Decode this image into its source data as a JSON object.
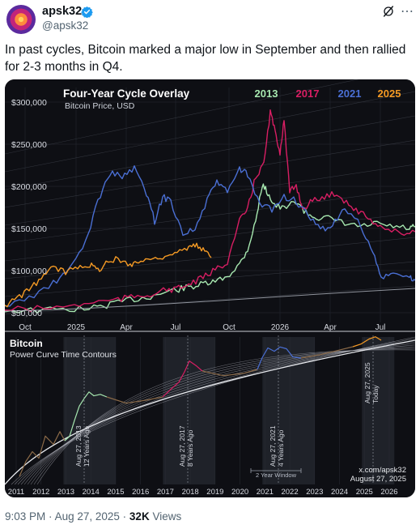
{
  "post": {
    "author_name": "apsk32",
    "author_handle": "@apsk32",
    "text": "In past cycles, Bitcoin marked a major low in September and then rallied for 2-3 months in Q4.",
    "time": "9:03 PM",
    "date": "Aug 27, 2025",
    "separator": "·",
    "views_count": "32K",
    "views_label": "Views",
    "icons": [
      "verified-badge-icon",
      "grok-icon",
      "more-options-icon"
    ]
  },
  "chart_data": [
    {
      "type": "line",
      "title": "Four-Year Cycle Overlay",
      "subtitle": "Bitcoin Price, USD",
      "legend_position": "top-right",
      "series": [
        {
          "name": "2013",
          "color": "#a7e8b0"
        },
        {
          "name": "2017",
          "color": "#d81e63"
        },
        {
          "name": "2021",
          "color": "#4a6fd4"
        },
        {
          "name": "2025",
          "color": "#f59a24"
        }
      ],
      "y_ticks": [
        "$300,000",
        "$250,000",
        "$200,000",
        "$150,000",
        "$100,000",
        "$50,000"
      ],
      "x_ticks": [
        "Oct",
        "2025",
        "Apr",
        "Jul",
        "Oct",
        "2026",
        "Apr",
        "Jul"
      ],
      "ylim": [
        45000,
        310000
      ]
    },
    {
      "type": "line",
      "title": "Bitcoin",
      "subtitle": "Power Curve Time Contours",
      "x_ticks": [
        "2011",
        "2012",
        "2013",
        "2014",
        "2015",
        "2016",
        "2017",
        "2018",
        "2019",
        "2020",
        "2021",
        "2022",
        "2023",
        "2024",
        "2025",
        "2026"
      ],
      "annotations": [
        {
          "date": "Aug 27, 2013",
          "note": "12 Years Ago"
        },
        {
          "date": "Aug 27, 2017",
          "note": "8 Years Ago"
        },
        {
          "date": "Aug 27, 2021",
          "note": "4 Years Ago"
        },
        {
          "date": "Aug 27, 2025",
          "note": "Today"
        }
      ],
      "window_label": "2 Year Window",
      "credit": "x.com/apsk32",
      "credit_date": "August 27, 2025"
    }
  ]
}
